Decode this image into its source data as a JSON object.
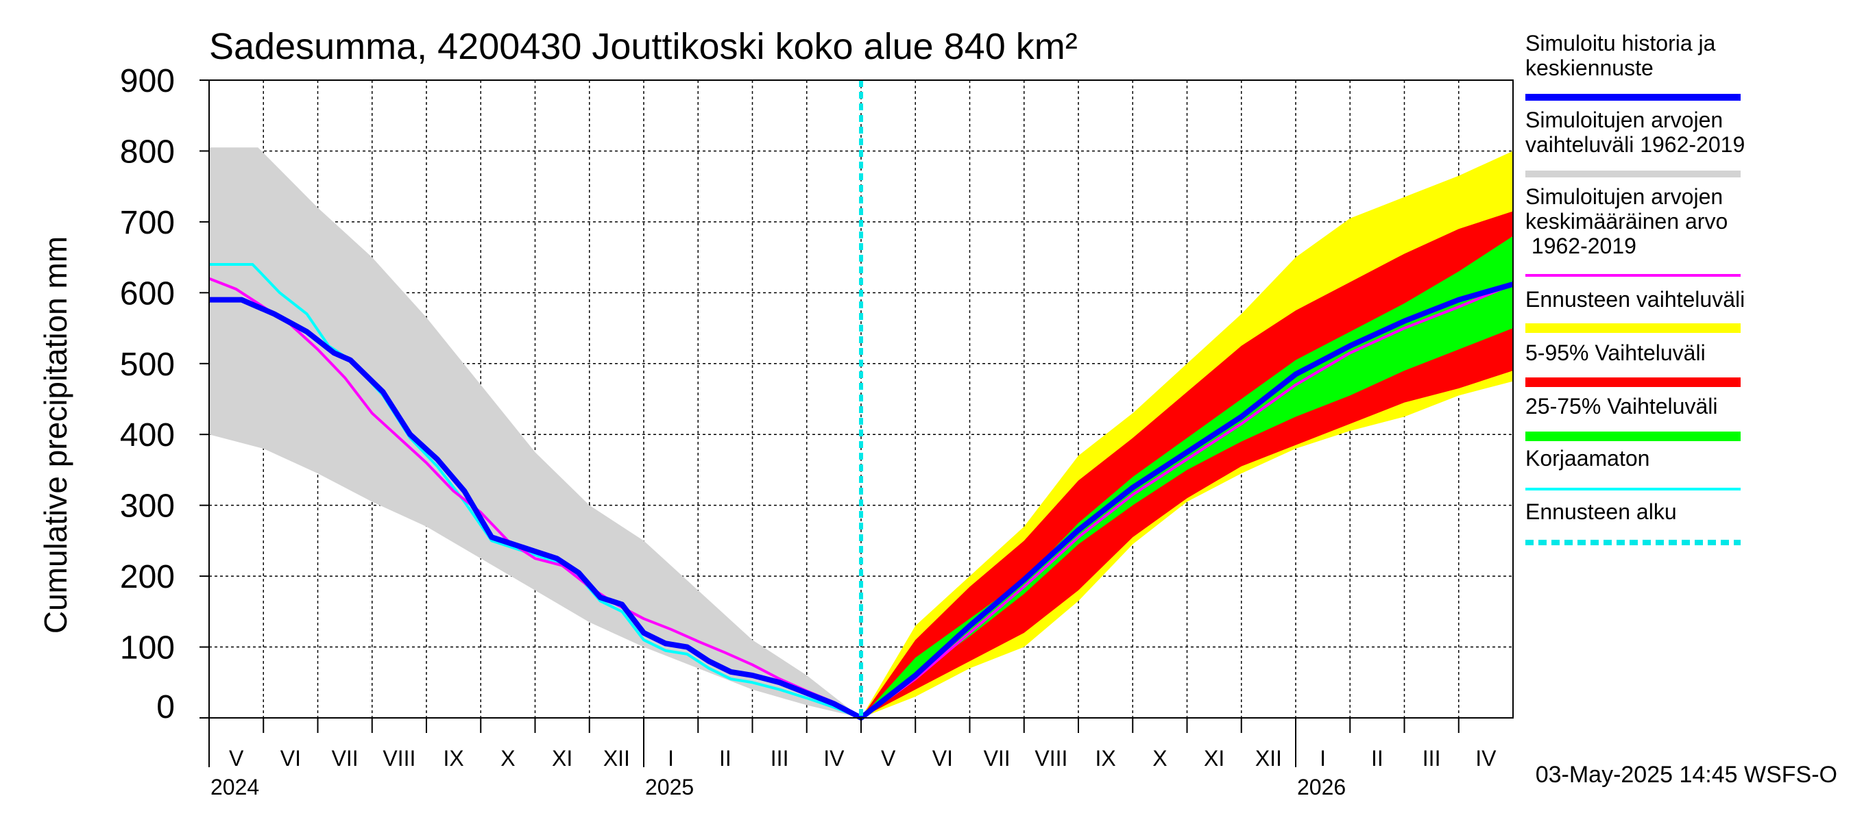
{
  "chart_data": {
    "type": "area",
    "title": "Sadesumma, 4200430 Jouttikoski koko alue 840 km²",
    "ylabel": "Cumulative precipitation   mm",
    "xlabel": "",
    "ylim": [
      0,
      900
    ],
    "yticks": [
      0,
      100,
      200,
      300,
      400,
      500,
      600,
      700,
      800,
      900
    ],
    "grid": true,
    "legend_position": "right",
    "month_labels": [
      "V",
      "VI",
      "VII",
      "VIII",
      "IX",
      "X",
      "XI",
      "XII",
      "I",
      "II",
      "III",
      "IV",
      "V",
      "VI",
      "VII",
      "VIII",
      "IX",
      "X",
      "XI",
      "XII",
      "I",
      "II",
      "III",
      "IV"
    ],
    "year_labels": [
      {
        "label": "2024",
        "month_index": 0
      },
      {
        "label": "2025",
        "month_index": 8
      },
      {
        "label": "2026",
        "month_index": 20
      }
    ],
    "forecast_start_month": 12,
    "x_unit": "month index from 1 May 2024",
    "history_range_low": {
      "x": [
        0,
        1,
        2,
        3,
        4,
        5,
        6,
        7,
        8,
        9,
        10,
        11,
        12
      ],
      "y": [
        400,
        380,
        345,
        305,
        270,
        225,
        180,
        135,
        100,
        70,
        40,
        18,
        0
      ]
    },
    "history_range_high": {
      "x": [
        0,
        0.9,
        2,
        3,
        4,
        5,
        6,
        7,
        8,
        9,
        10,
        11,
        12
      ],
      "y": [
        805,
        805,
        720,
        650,
        565,
        470,
        375,
        300,
        250,
        180,
        110,
        60,
        0
      ]
    },
    "forecast_bands": [
      {
        "name": "Ennusteen vaihteluväli",
        "color": "#ffff00",
        "x": [
          12,
          13,
          14,
          15,
          16,
          17,
          18,
          19,
          20,
          21,
          22,
          23,
          24
        ],
        "low": [
          0,
          30,
          70,
          100,
          165,
          245,
          305,
          345,
          380,
          405,
          425,
          455,
          475
        ],
        "high": [
          0,
          130,
          200,
          270,
          370,
          430,
          500,
          570,
          650,
          705,
          735,
          765,
          800
        ]
      },
      {
        "name": "5-95% Vaihteluväli",
        "color": "#ff0000",
        "x": [
          12,
          13,
          14,
          15,
          16,
          17,
          18,
          19,
          20,
          21,
          22,
          23,
          24
        ],
        "low": [
          0,
          40,
          80,
          120,
          180,
          255,
          310,
          355,
          385,
          415,
          445,
          465,
          490
        ],
        "high": [
          0,
          110,
          185,
          250,
          335,
          395,
          460,
          525,
          575,
          615,
          655,
          690,
          715
        ]
      },
      {
        "name": "25-75% Vaihteluväli",
        "color": "#00ff00",
        "x": [
          12,
          13,
          14,
          15,
          16,
          17,
          18,
          19,
          20,
          21,
          22,
          23,
          24
        ],
        "low": [
          0,
          60,
          115,
          175,
          245,
          300,
          350,
          390,
          425,
          455,
          490,
          520,
          550
        ],
        "high": [
          0,
          85,
          140,
          195,
          275,
          340,
          395,
          450,
          505,
          545,
          585,
          630,
          680
        ]
      }
    ],
    "series": [
      {
        "name": "Simuloitu historia ja keskiennuste",
        "color": "#0000ff",
        "width": 8,
        "x": [
          0,
          0.6,
          1.2,
          1.8,
          2.3,
          2.6,
          3.2,
          3.7,
          4.2,
          4.7,
          5.2,
          5.6,
          6,
          6.4,
          6.8,
          7.2,
          7.6,
          8,
          8.4,
          8.8,
          9.2,
          9.6,
          10,
          10.5,
          11,
          11.5,
          12,
          13,
          14,
          15,
          16,
          17,
          18,
          19,
          20,
          21,
          22,
          23,
          24
        ],
        "y": [
          590,
          590,
          570,
          545,
          515,
          505,
          460,
          400,
          365,
          320,
          255,
          245,
          235,
          225,
          205,
          170,
          160,
          120,
          105,
          100,
          80,
          65,
          60,
          50,
          35,
          20,
          0,
          60,
          130,
          195,
          265,
          325,
          375,
          425,
          485,
          525,
          560,
          590,
          612
        ]
      },
      {
        "name": "Simuloitujen arvojen keskimääräinen arvo 1962-2019",
        "color": "#ff00ff",
        "width": 4,
        "x": [
          0,
          0.5,
          1,
          1.5,
          2,
          2.5,
          3,
          3.5,
          4,
          4.5,
          5,
          5.5,
          6,
          6.5,
          7,
          7.5,
          8,
          8.5,
          9,
          9.5,
          10,
          10.5,
          11,
          11.5,
          12,
          13,
          14,
          15,
          16,
          17,
          18,
          19,
          20,
          21,
          22,
          23,
          24
        ],
        "y": [
          620,
          605,
          580,
          555,
          520,
          480,
          430,
          395,
          360,
          320,
          290,
          250,
          225,
          215,
          185,
          160,
          140,
          125,
          108,
          92,
          75,
          55,
          38,
          22,
          0,
          55,
          120,
          185,
          255,
          315,
          365,
          415,
          470,
          515,
          550,
          580,
          612
        ]
      },
      {
        "name": "Korjaamaton",
        "color": "#00ffff",
        "width": 4,
        "x": [
          0,
          0.8,
          1.3,
          1.8,
          2.2,
          2.6,
          3.2,
          3.7,
          4.2,
          4.7,
          5.2,
          5.6,
          6,
          6.4,
          6.8,
          7.2,
          7.6,
          8,
          8.4,
          8.8,
          9.2,
          9.6,
          10,
          10.5,
          11,
          11.5,
          12
        ],
        "y": [
          640,
          640,
          600,
          570,
          525,
          505,
          455,
          395,
          355,
          305,
          250,
          240,
          230,
          220,
          200,
          165,
          150,
          110,
          95,
          90,
          70,
          55,
          50,
          40,
          28,
          15,
          0
        ]
      }
    ],
    "forecast_start_line": {
      "name": "Ennusteen alku",
      "color": "#00e8e8"
    },
    "legend": [
      {
        "label": "Simuloitu historia ja keskiennuste",
        "color": "#0000ff",
        "style": "thick"
      },
      {
        "label": "Simuloitujen arvojen vaihteluväli 1962-2019",
        "color": "#d3d3d3",
        "style": "thick"
      },
      {
        "label": "Simuloitujen arvojen keskimääräinen arvo 1962-2019",
        "color": "#ff00ff",
        "style": "thin"
      },
      {
        "label": "Ennusteen vaihteluväli",
        "color": "#ffff00",
        "style": "band"
      },
      {
        "label": "5-95% Vaihteluväli",
        "color": "#ff0000",
        "style": "band"
      },
      {
        "label": "25-75% Vaihteluväli",
        "color": "#00ff00",
        "style": "band"
      },
      {
        "label": "Korjaamaton",
        "color": "#00ffff",
        "style": "thin"
      },
      {
        "label": "Ennusteen alku",
        "color": "#00e8e8",
        "style": "dashed"
      }
    ],
    "footer": "03-May-2025 14:45 WSFS-O"
  }
}
